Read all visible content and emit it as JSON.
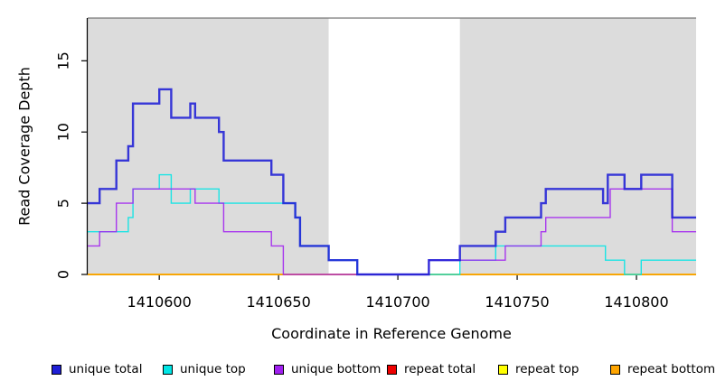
{
  "figure": {
    "background": "#FFFFFF",
    "panel_shade_color": "#DCDCDC",
    "axis_color": "#000000",
    "top_border_color": "#777777"
  },
  "chart_data": {
    "type": "line",
    "subtype": "step",
    "title": "",
    "xlabel": "Coordinate in Reference Genome",
    "ylabel": "Read Coverage Depth",
    "xlim": [
      1410570,
      1410825
    ],
    "ylim": [
      0,
      18
    ],
    "xticks": [
      1410600,
      1410650,
      1410700,
      1410750,
      1410800
    ],
    "yticks": [
      0,
      5,
      10,
      15
    ],
    "grid": false,
    "legend_position": "bottom",
    "shaded_regions": [
      {
        "x0": 1410570,
        "x1": 1410671,
        "color": "#DCDCDC"
      },
      {
        "x0": 1410726,
        "x1": 1410825,
        "color": "#DCDCDC"
      }
    ],
    "series": [
      {
        "name": "unique total",
        "color": "#1F1FD6",
        "line_width": 2.4,
        "points": [
          [
            1410570,
            5
          ],
          [
            1410575,
            6
          ],
          [
            1410582,
            8
          ],
          [
            1410587,
            9
          ],
          [
            1410589,
            12
          ],
          [
            1410600,
            13
          ],
          [
            1410605,
            11
          ],
          [
            1410613,
            12
          ],
          [
            1410615,
            11
          ],
          [
            1410625,
            10
          ],
          [
            1410627,
            8
          ],
          [
            1410647,
            7
          ],
          [
            1410652,
            5
          ],
          [
            1410657,
            4
          ],
          [
            1410659,
            2
          ],
          [
            1410671,
            1
          ],
          [
            1410683,
            0
          ],
          [
            1410713,
            1
          ],
          [
            1410726,
            2
          ],
          [
            1410741,
            3
          ],
          [
            1410745,
            4
          ],
          [
            1410760,
            5
          ],
          [
            1410762,
            6
          ],
          [
            1410786,
            5
          ],
          [
            1410788,
            7
          ],
          [
            1410795,
            6
          ],
          [
            1410802,
            7
          ],
          [
            1410815,
            4
          ],
          [
            1410825,
            4
          ]
        ]
      },
      {
        "name": "unique top",
        "color": "#00E5E5",
        "line_width": 1.4,
        "points": [
          [
            1410570,
            3
          ],
          [
            1410587,
            4
          ],
          [
            1410589,
            6
          ],
          [
            1410600,
            7
          ],
          [
            1410605,
            5
          ],
          [
            1410613,
            6
          ],
          [
            1410625,
            5
          ],
          [
            1410657,
            4
          ],
          [
            1410659,
            2
          ],
          [
            1410671,
            1
          ],
          [
            1410683,
            0
          ],
          [
            1410726,
            1
          ],
          [
            1410741,
            2
          ],
          [
            1410787,
            1
          ],
          [
            1410795,
            0
          ],
          [
            1410802,
            1
          ],
          [
            1410825,
            1
          ]
        ]
      },
      {
        "name": "unique bottom",
        "color": "#A020F0",
        "line_width": 1.4,
        "points": [
          [
            1410570,
            2
          ],
          [
            1410575,
            3
          ],
          [
            1410582,
            5
          ],
          [
            1410589,
            6
          ],
          [
            1410615,
            5
          ],
          [
            1410627,
            3
          ],
          [
            1410647,
            2
          ],
          [
            1410652,
            0
          ],
          [
            1410713,
            1
          ],
          [
            1410745,
            2
          ],
          [
            1410760,
            3
          ],
          [
            1410762,
            4
          ],
          [
            1410789,
            6
          ],
          [
            1410815,
            3
          ],
          [
            1410825,
            3
          ]
        ]
      },
      {
        "name": "repeat total",
        "color": "#EE0000",
        "line_width": 1.4,
        "points": [
          [
            1410570,
            0
          ],
          [
            1410825,
            0
          ]
        ]
      },
      {
        "name": "repeat top",
        "color": "#FFFF00",
        "line_width": 1.4,
        "points": [
          [
            1410570,
            0
          ],
          [
            1410825,
            0
          ]
        ]
      },
      {
        "name": "repeat bottom",
        "color": "#FFA500",
        "line_width": 1.8,
        "points": [
          [
            1410570,
            0
          ],
          [
            1410825,
            0
          ]
        ]
      }
    ],
    "draw_order": [
      "repeat total",
      "repeat top",
      "repeat bottom",
      "unique top",
      "unique bottom",
      "unique total"
    ]
  }
}
